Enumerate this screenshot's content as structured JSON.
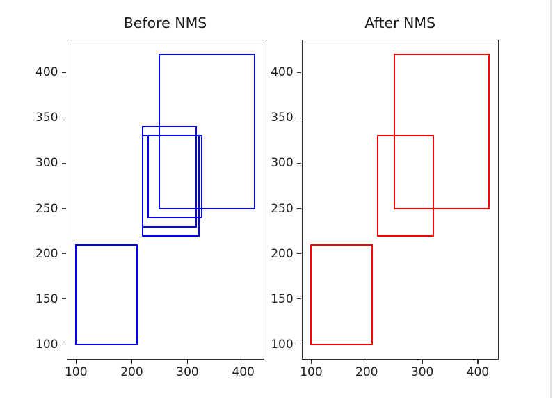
{
  "figure": {
    "background": "#ffffff",
    "edge_line_color": "#e0e0e0",
    "axis_color": "#2a2a2a",
    "text_color": "#1c1c1c"
  },
  "chart_data": [
    {
      "type": "bar",
      "subtype": "bounding-box-overlay",
      "title": "Before NMS",
      "box_color": "#0000ff",
      "xlabel": "",
      "ylabel": "",
      "xlim": [
        84,
        436
      ],
      "ylim": [
        84,
        436
      ],
      "xticks": [
        100,
        200,
        300,
        400
      ],
      "yticks": [
        100,
        150,
        200,
        250,
        300,
        350,
        400
      ],
      "grid": false,
      "legend": null,
      "boxes_x1y1x2y2": [
        [
          100,
          100,
          210,
          210
        ],
        [
          250,
          250,
          420,
          420
        ],
        [
          220,
          220,
          320,
          330
        ],
        [
          100,
          100,
          210,
          210
        ],
        [
          230,
          240,
          325,
          330
        ],
        [
          220,
          230,
          315,
          340
        ]
      ]
    },
    {
      "type": "bar",
      "subtype": "bounding-box-overlay",
      "title": "After NMS",
      "box_color": "#ff0000",
      "xlabel": "",
      "ylabel": "",
      "xlim": [
        84,
        436
      ],
      "ylim": [
        84,
        436
      ],
      "xticks": [
        100,
        200,
        300,
        400
      ],
      "yticks": [
        100,
        150,
        200,
        250,
        300,
        350,
        400
      ],
      "grid": false,
      "legend": null,
      "boxes_x1y1x2y2": [
        [
          220,
          220,
          320,
          330
        ],
        [
          250,
          250,
          420,
          420
        ],
        [
          100,
          100,
          210,
          210
        ]
      ]
    }
  ]
}
